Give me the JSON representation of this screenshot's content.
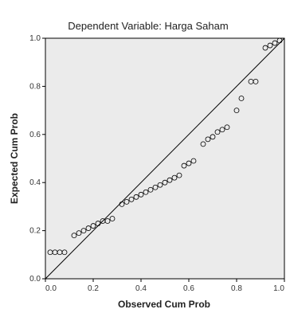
{
  "chart_data": {
    "type": "scatter",
    "title": "Dependent Variable: Harga Saham",
    "xlabel": "Observed Cum Prob",
    "ylabel": "Expected Cum Prob",
    "xlim": [
      0,
      1
    ],
    "ylim": [
      0,
      1
    ],
    "x_ticks": [
      "0.0",
      "0.2",
      "0.4",
      "0.6",
      "0.8",
      "1.0"
    ],
    "y_ticks": [
      "0.0",
      "0.2",
      "0.4",
      "0.6",
      "0.8",
      "1.0"
    ],
    "grid": false,
    "background_color": "#ebebeb",
    "marker": "open-circle",
    "reference_line": {
      "from": [
        0,
        0
      ],
      "to": [
        1,
        1
      ]
    },
    "series": [
      {
        "points": [
          [
            0.02,
            0.11
          ],
          [
            0.04,
            0.11
          ],
          [
            0.06,
            0.11
          ],
          [
            0.08,
            0.11
          ],
          [
            0.12,
            0.18
          ],
          [
            0.14,
            0.19
          ],
          [
            0.16,
            0.2
          ],
          [
            0.18,
            0.21
          ],
          [
            0.2,
            0.22
          ],
          [
            0.22,
            0.23
          ],
          [
            0.24,
            0.24
          ],
          [
            0.26,
            0.24
          ],
          [
            0.28,
            0.25
          ],
          [
            0.32,
            0.31
          ],
          [
            0.34,
            0.32
          ],
          [
            0.36,
            0.33
          ],
          [
            0.38,
            0.34
          ],
          [
            0.4,
            0.35
          ],
          [
            0.42,
            0.36
          ],
          [
            0.44,
            0.37
          ],
          [
            0.46,
            0.38
          ],
          [
            0.48,
            0.39
          ],
          [
            0.5,
            0.4
          ],
          [
            0.52,
            0.41
          ],
          [
            0.54,
            0.42
          ],
          [
            0.56,
            0.43
          ],
          [
            0.58,
            0.47
          ],
          [
            0.6,
            0.48
          ],
          [
            0.62,
            0.49
          ],
          [
            0.66,
            0.56
          ],
          [
            0.68,
            0.58
          ],
          [
            0.7,
            0.59
          ],
          [
            0.72,
            0.61
          ],
          [
            0.74,
            0.62
          ],
          [
            0.76,
            0.63
          ],
          [
            0.8,
            0.7
          ],
          [
            0.82,
            0.75
          ],
          [
            0.86,
            0.82
          ],
          [
            0.88,
            0.82
          ],
          [
            0.92,
            0.96
          ],
          [
            0.94,
            0.97
          ],
          [
            0.96,
            0.98
          ],
          [
            0.98,
            0.99
          ]
        ]
      }
    ]
  }
}
